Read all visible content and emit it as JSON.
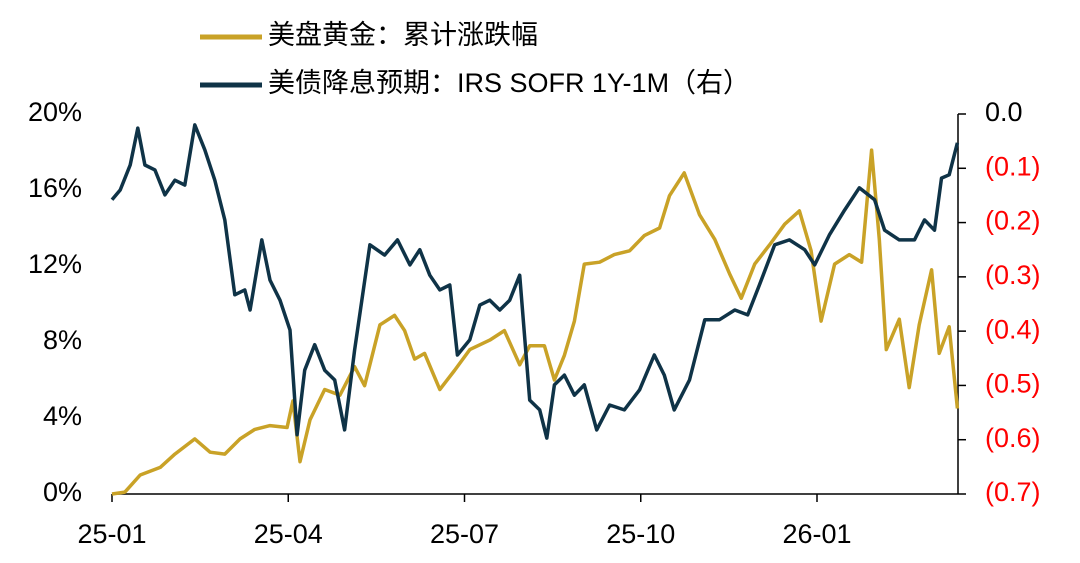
{
  "chart_data": {
    "type": "line",
    "legend": "top",
    "xlim": [
      0,
      14.4
    ],
    "xticks": [
      {
        "value": 0,
        "label": "25-01"
      },
      {
        "value": 3,
        "label": "25-04"
      },
      {
        "value": 6,
        "label": "25-07"
      },
      {
        "value": 9,
        "label": "25-10"
      },
      {
        "value": 12,
        "label": "26-01"
      }
    ],
    "ylim": [
      0,
      20
    ],
    "yticks": [
      {
        "value": 0,
        "label": "0%"
      },
      {
        "value": 4,
        "label": "4%"
      },
      {
        "value": 8,
        "label": "8%"
      },
      {
        "value": 12,
        "label": "12%"
      },
      {
        "value": 16,
        "label": "16%"
      },
      {
        "value": 20,
        "label": "20%"
      }
    ],
    "y2lim": [
      -0.7,
      0
    ],
    "y2ticks": [
      {
        "value": 0,
        "label": "0.0"
      },
      {
        "value": -0.1,
        "label": "(0.1)"
      },
      {
        "value": -0.2,
        "label": "(0.2)"
      },
      {
        "value": -0.3,
        "label": "(0.3)"
      },
      {
        "value": -0.4,
        "label": "(0.4)"
      },
      {
        "value": -0.5,
        "label": "(0.5)"
      },
      {
        "value": -0.6,
        "label": "(0.6)"
      },
      {
        "value": -0.7,
        "label": "(0.7)"
      }
    ],
    "negative_tick_color": "#ff0000",
    "series": [
      {
        "name": "美盘黄金：累计涨跌幅",
        "color": "#c9a227",
        "x": [
          0,
          0.22,
          0.48,
          0.82,
          1.07,
          1.41,
          1.67,
          1.92,
          2.18,
          2.43,
          2.69,
          2.98,
          3.08,
          3.2,
          3.37,
          3.62,
          3.88,
          4.13,
          4.3,
          4.56,
          4.81,
          4.98,
          5.15,
          5.32,
          5.58,
          5.83,
          6.09,
          6.43,
          6.68,
          6.94,
          7.11,
          7.36,
          7.53,
          7.7,
          7.87,
          8.04,
          8.3,
          8.55,
          8.81,
          9.06,
          9.32,
          9.49,
          9.74,
          10.0,
          10.26,
          10.51,
          10.71,
          10.94,
          11.19,
          11.45,
          11.7,
          11.9,
          12.07,
          12.3,
          12.55,
          12.76,
          12.93,
          13.06,
          13.18,
          13.4,
          13.57,
          13.74,
          13.95,
          14.08,
          14.25,
          14.39
        ],
        "values": [
          0,
          0.1,
          1.0,
          1.4,
          2.1,
          2.9,
          2.2,
          2.1,
          2.9,
          3.4,
          3.6,
          3.5,
          4.9,
          1.7,
          3.9,
          5.5,
          5.2,
          6.7,
          5.7,
          8.9,
          9.4,
          8.6,
          7.1,
          7.4,
          5.5,
          6.5,
          7.6,
          8.1,
          8.6,
          6.8,
          7.8,
          7.8,
          6.0,
          7.3,
          9.1,
          12.1,
          12.2,
          12.6,
          12.8,
          13.6,
          14.0,
          15.7,
          16.9,
          14.7,
          13.4,
          11.6,
          10.3,
          12.1,
          13.1,
          14.2,
          14.9,
          12.8,
          9.1,
          12.1,
          12.6,
          12.2,
          18.1,
          13.4,
          7.6,
          9.2,
          5.6,
          8.9,
          11.8,
          7.4,
          8.8,
          4.5
        ]
      },
      {
        "name": "美债降息预期：IRS SOFR 1Y-1M（右）",
        "color": "#0f3347",
        "axis": "y2",
        "x": [
          0,
          0.14,
          0.31,
          0.44,
          0.56,
          0.73,
          0.9,
          1.07,
          1.24,
          1.41,
          1.58,
          1.75,
          1.92,
          2.09,
          2.26,
          2.35,
          2.55,
          2.69,
          2.86,
          3.03,
          3.15,
          3.28,
          3.45,
          3.62,
          3.79,
          3.96,
          4.13,
          4.39,
          4.64,
          4.86,
          5.07,
          5.24,
          5.41,
          5.58,
          5.75,
          5.88,
          6.09,
          6.26,
          6.43,
          6.6,
          6.77,
          6.94,
          7.11,
          7.28,
          7.4,
          7.53,
          7.7,
          7.87,
          8.04,
          8.25,
          8.47,
          8.72,
          8.98,
          9.23,
          9.4,
          9.57,
          9.83,
          10.09,
          10.34,
          10.6,
          10.82,
          11.02,
          11.28,
          11.53,
          11.79,
          11.96,
          12.21,
          12.47,
          12.72,
          12.98,
          13.15,
          13.4,
          13.66,
          13.83,
          14.0,
          14.12,
          14.25,
          14.39
        ],
        "values": [
          -0.158,
          -0.14,
          -0.094,
          -0.026,
          -0.094,
          -0.103,
          -0.149,
          -0.122,
          -0.131,
          -0.02,
          -0.066,
          -0.122,
          -0.195,
          -0.333,
          -0.324,
          -0.361,
          -0.232,
          -0.306,
          -0.343,
          -0.398,
          -0.591,
          -0.472,
          -0.425,
          -0.472,
          -0.49,
          -0.582,
          -0.435,
          -0.241,
          -0.26,
          -0.232,
          -0.278,
          -0.25,
          -0.297,
          -0.324,
          -0.315,
          -0.444,
          -0.416,
          -0.352,
          -0.343,
          -0.361,
          -0.343,
          -0.297,
          -0.527,
          -0.545,
          -0.597,
          -0.499,
          -0.481,
          -0.518,
          -0.499,
          -0.582,
          -0.536,
          -0.545,
          -0.508,
          -0.444,
          -0.481,
          -0.545,
          -0.49,
          -0.379,
          -0.379,
          -0.361,
          -0.37,
          -0.315,
          -0.241,
          -0.232,
          -0.25,
          -0.278,
          -0.223,
          -0.177,
          -0.136,
          -0.158,
          -0.214,
          -0.232,
          -0.232,
          -0.195,
          -0.214,
          -0.118,
          -0.112,
          -0.053
        ]
      }
    ]
  }
}
